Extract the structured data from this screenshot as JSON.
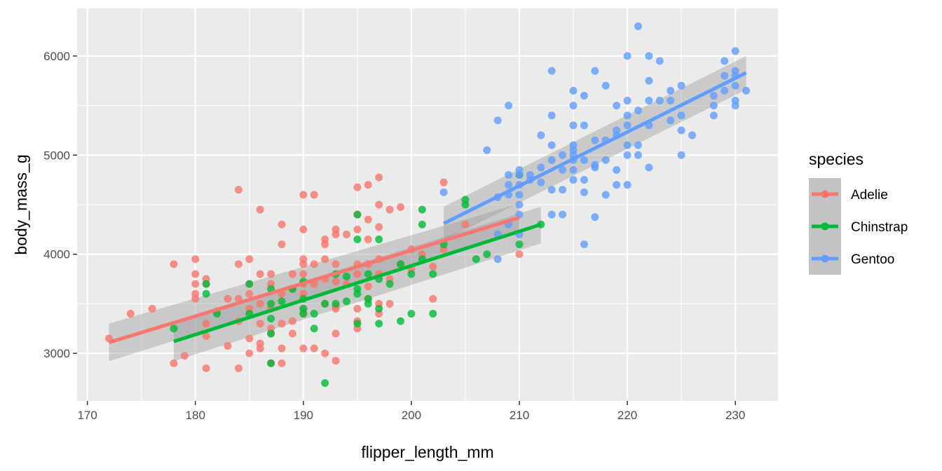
{
  "chart_data": {
    "type": "scatter",
    "xlabel": "flipper_length_mm",
    "ylabel": "body_mass_g",
    "xlim": [
      169.05,
      233.95
    ],
    "ylim": [
      2520,
      6480
    ],
    "x_ticks": [
      170,
      180,
      190,
      200,
      210,
      220,
      230
    ],
    "x_tick_labels": [
      "170",
      "180",
      "190",
      "200",
      "210",
      "220",
      "230"
    ],
    "y_ticks": [
      3000,
      4000,
      5000,
      6000
    ],
    "y_tick_labels": [
      "3000",
      "4000",
      "5000",
      "6000"
    ],
    "grid": true,
    "legend": {
      "title": "species",
      "position": "right"
    },
    "series": [
      {
        "name": "Adelie",
        "color": "#F8766D",
        "fit": {
          "x": [
            172,
            210
          ],
          "y": [
            3110,
            4370
          ],
          "band": [
            [
              3300,
              2920
            ],
            [
              4510,
              4230
            ]
          ]
        },
        "points": [
          [
            172,
            3150
          ],
          [
            174,
            3400
          ],
          [
            176,
            3450
          ],
          [
            178,
            3900
          ],
          [
            178,
            2900
          ],
          [
            179,
            2975
          ],
          [
            180,
            3950
          ],
          [
            180,
            3800
          ],
          [
            180,
            3700
          ],
          [
            180,
            3600
          ],
          [
            180,
            3550
          ],
          [
            181,
            3750
          ],
          [
            181,
            3700
          ],
          [
            181,
            3300
          ],
          [
            181,
            3175
          ],
          [
            181,
            2850
          ],
          [
            182,
            3425
          ],
          [
            183,
            3550
          ],
          [
            183,
            3075
          ],
          [
            184,
            4650
          ],
          [
            184,
            3900
          ],
          [
            184,
            3550
          ],
          [
            184,
            3325
          ],
          [
            184,
            2850
          ],
          [
            185,
            3950
          ],
          [
            185,
            3700
          ],
          [
            185,
            3600
          ],
          [
            185,
            3450
          ],
          [
            185,
            3150
          ],
          [
            185,
            3000
          ],
          [
            186,
            4450
          ],
          [
            186,
            3800
          ],
          [
            186,
            3500
          ],
          [
            186,
            3300
          ],
          [
            186,
            3100
          ],
          [
            186,
            3050
          ],
          [
            187,
            3800
          ],
          [
            187,
            3700
          ],
          [
            187,
            3450
          ],
          [
            187,
            3250
          ],
          [
            187,
            3200
          ],
          [
            187,
            2900
          ],
          [
            188,
            4300
          ],
          [
            188,
            4100
          ],
          [
            188,
            3600
          ],
          [
            188,
            3300
          ],
          [
            188,
            3050
          ],
          [
            188,
            2900
          ],
          [
            189,
            3800
          ],
          [
            189,
            3650
          ],
          [
            189,
            3325
          ],
          [
            189,
            3200
          ],
          [
            190,
            4600
          ],
          [
            190,
            4250
          ],
          [
            190,
            3950
          ],
          [
            190,
            3900
          ],
          [
            190,
            3800
          ],
          [
            190,
            3700
          ],
          [
            190,
            3600
          ],
          [
            190,
            3450
          ],
          [
            190,
            3050
          ],
          [
            190,
            3400
          ],
          [
            191,
            4600
          ],
          [
            191,
            3900
          ],
          [
            191,
            3700
          ],
          [
            191,
            3050
          ],
          [
            192,
            4150
          ],
          [
            192,
            4100
          ],
          [
            192,
            3950
          ],
          [
            192,
            3750
          ],
          [
            192,
            3500
          ],
          [
            192,
            3000
          ],
          [
            193,
            4250
          ],
          [
            193,
            4200
          ],
          [
            193,
            3900
          ],
          [
            193,
            3725
          ],
          [
            193,
            3475
          ],
          [
            193,
            3450
          ],
          [
            193,
            3200
          ],
          [
            193,
            2925
          ],
          [
            194,
            4200
          ],
          [
            194,
            3700
          ],
          [
            195,
            4675
          ],
          [
            195,
            4400
          ],
          [
            195,
            4250
          ],
          [
            195,
            3900
          ],
          [
            195,
            3800
          ],
          [
            195,
            3450
          ],
          [
            195,
            3325
          ],
          [
            195,
            3250
          ],
          [
            196,
            4700
          ],
          [
            196,
            4350
          ],
          [
            196,
            4150
          ],
          [
            196,
            3900
          ],
          [
            196,
            3675
          ],
          [
            196,
            3550
          ],
          [
            197,
            4775
          ],
          [
            197,
            4500
          ],
          [
            197,
            4275
          ],
          [
            197,
            3950
          ],
          [
            197,
            3500
          ],
          [
            197,
            3400
          ],
          [
            197,
            3800
          ],
          [
            198,
            4450
          ],
          [
            198,
            3750
          ],
          [
            198,
            3500
          ],
          [
            199,
            4475
          ],
          [
            199,
            3900
          ],
          [
            200,
            4050
          ],
          [
            200,
            3850
          ],
          [
            201,
            4000
          ],
          [
            202,
            3550
          ],
          [
            202,
            3875
          ],
          [
            203,
            4725
          ],
          [
            203,
            4050
          ],
          [
            205,
            4300
          ],
          [
            210,
            4000
          ]
        ]
      },
      {
        "name": "Chinstrap",
        "color": "#00BA38",
        "fit": {
          "x": [
            178,
            212
          ],
          "y": [
            3120,
            4300
          ],
          "band": [
            [
              3320,
              2920
            ],
            [
              4480,
              4110
            ]
          ]
        },
        "points": [
          [
            178,
            3250
          ],
          [
            181,
            3700
          ],
          [
            181,
            3600
          ],
          [
            182,
            3400
          ],
          [
            185,
            3700
          ],
          [
            185,
            3400
          ],
          [
            187,
            3650
          ],
          [
            187,
            3500
          ],
          [
            187,
            3350
          ],
          [
            187,
            3200
          ],
          [
            187,
            2900
          ],
          [
            188,
            3525
          ],
          [
            189,
            3650
          ],
          [
            190,
            3725
          ],
          [
            190,
            3550
          ],
          [
            190,
            3450
          ],
          [
            190,
            3400
          ],
          [
            191,
            3400
          ],
          [
            191,
            3250
          ],
          [
            192,
            2700
          ],
          [
            192,
            3500
          ],
          [
            193,
            3800
          ],
          [
            193,
            3500
          ],
          [
            194,
            3525
          ],
          [
            194,
            3775
          ],
          [
            195,
            4400
          ],
          [
            195,
            4150
          ],
          [
            195,
            3650
          ],
          [
            195,
            3600
          ],
          [
            195,
            3300
          ],
          [
            196,
            3550
          ],
          [
            196,
            3500
          ],
          [
            196,
            3800
          ],
          [
            197,
            4150
          ],
          [
            197,
            3750
          ],
          [
            197,
            3450
          ],
          [
            197,
            3300
          ],
          [
            198,
            3700
          ],
          [
            199,
            3900
          ],
          [
            199,
            3325
          ],
          [
            200,
            3800
          ],
          [
            200,
            3400
          ],
          [
            201,
            4450
          ],
          [
            201,
            4300
          ],
          [
            201,
            3950
          ],
          [
            202,
            3800
          ],
          [
            202,
            3400
          ],
          [
            203,
            4100
          ],
          [
            205,
            4550
          ],
          [
            205,
            4500
          ],
          [
            206,
            3950
          ],
          [
            207,
            4000
          ],
          [
            210,
            4800
          ],
          [
            210,
            4100
          ],
          [
            212,
            4300
          ]
        ]
      },
      {
        "name": "Gentoo",
        "color": "#619CFF",
        "fit": {
          "x": [
            203,
            231
          ],
          "y": [
            4310,
            5830
          ],
          "band": [
            [
              4480,
              4140
            ],
            [
              6000,
              5660
            ]
          ]
        },
        "points": [
          [
            203,
            4625
          ],
          [
            207,
            5050
          ],
          [
            208,
            5350
          ],
          [
            208,
            4575
          ],
          [
            208,
            4200
          ],
          [
            208,
            3950
          ],
          [
            209,
            5500
          ],
          [
            209,
            4800
          ],
          [
            209,
            4700
          ],
          [
            209,
            4600
          ],
          [
            209,
            4300
          ],
          [
            210,
            4850
          ],
          [
            210,
            4800
          ],
          [
            210,
            4700
          ],
          [
            210,
            4600
          ],
          [
            210,
            4500
          ],
          [
            210,
            4400
          ],
          [
            210,
            4200
          ],
          [
            211,
            4800
          ],
          [
            211,
            4750
          ],
          [
            212,
            5200
          ],
          [
            212,
            4875
          ],
          [
            212,
            4725
          ],
          [
            213,
            5850
          ],
          [
            213,
            5400
          ],
          [
            213,
            5100
          ],
          [
            213,
            4950
          ],
          [
            213,
            4650
          ],
          [
            213,
            4400
          ],
          [
            214,
            5000
          ],
          [
            214,
            4650
          ],
          [
            214,
            4850
          ],
          [
            214,
            4400
          ],
          [
            215,
            5650
          ],
          [
            215,
            5500
          ],
          [
            215,
            5300
          ],
          [
            215,
            5100
          ],
          [
            215,
            5050
          ],
          [
            215,
            5000
          ],
          [
            215,
            4850
          ],
          [
            215,
            4750
          ],
          [
            215,
            4950
          ],
          [
            216,
            5600
          ],
          [
            216,
            5300
          ],
          [
            216,
            4950
          ],
          [
            216,
            4750
          ],
          [
            216,
            4625
          ],
          [
            216,
            4100
          ],
          [
            217,
            5850
          ],
          [
            217,
            5150
          ],
          [
            217,
            4900
          ],
          [
            217,
            4875
          ],
          [
            217,
            4375
          ],
          [
            218,
            5700
          ],
          [
            218,
            5150
          ],
          [
            218,
            4950
          ],
          [
            218,
            4600
          ],
          [
            219,
            5500
          ],
          [
            219,
            5250
          ],
          [
            219,
            5200
          ],
          [
            219,
            4850
          ],
          [
            219,
            4700
          ],
          [
            220,
            6000
          ],
          [
            220,
            5550
          ],
          [
            220,
            5400
          ],
          [
            220,
            5300
          ],
          [
            220,
            5100
          ],
          [
            220,
            5000
          ],
          [
            220,
            4700
          ],
          [
            221,
            6300
          ],
          [
            221,
            5450
          ],
          [
            221,
            5100
          ],
          [
            221,
            5000
          ],
          [
            222,
            6000
          ],
          [
            222,
            5750
          ],
          [
            222,
            5550
          ],
          [
            222,
            5300
          ],
          [
            222,
            4875
          ],
          [
            223,
            5950
          ],
          [
            223,
            5550
          ],
          [
            224,
            5650
          ],
          [
            224,
            5550
          ],
          [
            224,
            5350
          ],
          [
            225,
            5700
          ],
          [
            225,
            5400
          ],
          [
            225,
            5250
          ],
          [
            225,
            5000
          ],
          [
            226,
            5200
          ],
          [
            228,
            5600
          ],
          [
            228,
            5500
          ],
          [
            228,
            5400
          ],
          [
            229,
            5950
          ],
          [
            229,
            5800
          ],
          [
            229,
            5650
          ],
          [
            230,
            6050
          ],
          [
            230,
            5850
          ],
          [
            230,
            5800
          ],
          [
            230,
            5700
          ],
          [
            230,
            5550
          ],
          [
            230,
            5500
          ],
          [
            231,
            5650
          ]
        ]
      }
    ]
  }
}
